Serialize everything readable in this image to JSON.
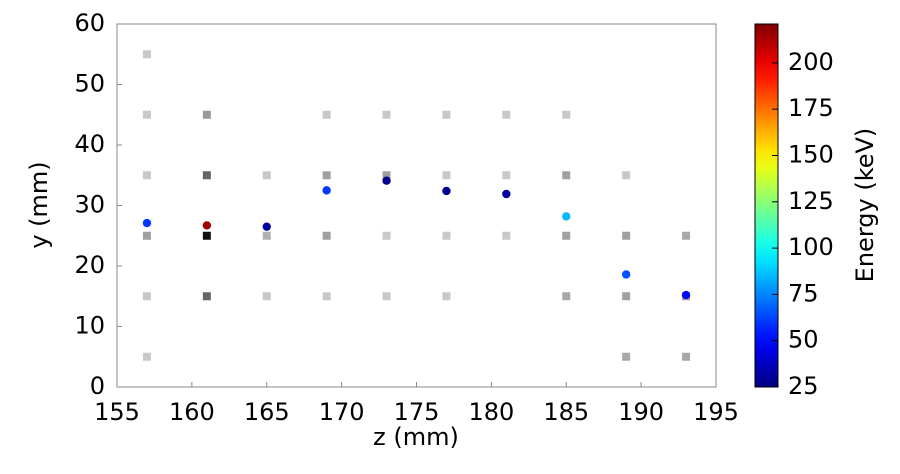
{
  "chart_data": {
    "type": "scatter",
    "xlabel": "z (mm)",
    "ylabel": "y (mm)",
    "xlim": [
      155,
      195
    ],
    "xticks": [
      155,
      160,
      165,
      170,
      175,
      180,
      185,
      190,
      195
    ],
    "ylim": [
      0,
      60
    ],
    "yticks": [
      0,
      10,
      20,
      30,
      40,
      50,
      60
    ],
    "colorbar": {
      "label": "Energy (keV)",
      "colormap": "jet",
      "lim": [
        25,
        221
      ],
      "ticks": [
        25,
        50,
        75,
        100,
        125,
        150,
        175,
        200
      ]
    },
    "series": [
      {
        "marker": "square",
        "x": [
          157,
          157,
          157,
          157,
          157,
          157,
          161,
          161,
          161,
          161,
          165,
          165,
          165,
          169,
          169,
          169,
          169,
          173,
          173,
          173,
          173,
          177,
          177,
          177,
          177,
          181,
          181,
          181,
          185,
          185,
          185,
          185,
          189,
          189,
          189,
          189,
          193,
          193,
          193
        ],
        "values": [
          55,
          45,
          35,
          25,
          15,
          5,
          45,
          35,
          25,
          15,
          35,
          25,
          15,
          45,
          35,
          25,
          15,
          45,
          35,
          25,
          15,
          45,
          35,
          25,
          15,
          45,
          35,
          25,
          45,
          35,
          25,
          15,
          35,
          25,
          15,
          5,
          25,
          15,
          5
        ],
        "colors": [
          "#c8c8c8",
          "#c8c8c8",
          "#c8c8c8",
          "#a0a0a0",
          "#c8c8c8",
          "#c8c8c8",
          "#999999",
          "#666666",
          "#111111",
          "#666666",
          "#c8c8c8",
          "#b0b0b0",
          "#c8c8c8",
          "#c8c8c8",
          "#a0a0a0",
          "#a0a0a0",
          "#c8c8c8",
          "#c8c8c8",
          "#a0a0a0",
          "#c8c8c8",
          "#c8c8c8",
          "#c8c8c8",
          "#c8c8c8",
          "#c8c8c8",
          "#c8c8c8",
          "#c8c8c8",
          "#c8c8c8",
          "#c8c8c8",
          "#c8c8c8",
          "#a0a0a0",
          "#a0a0a0",
          "#a8a8a8",
          "#c8c8c8",
          "#a0a0a0",
          "#a0a0a0",
          "#a8a8a8",
          "#a8a8a8",
          "#a0a0a0",
          "#a8a8a8"
        ]
      },
      {
        "marker": "circle",
        "x": [
          157,
          161,
          165,
          169,
          173,
          177,
          181,
          185,
          189,
          193
        ],
        "values": [
          27.1,
          26.7,
          26.5,
          32.5,
          34.1,
          32.4,
          31.9,
          28.2,
          18.6,
          15.2
        ],
        "energy": [
          60,
          215,
          30,
          60,
          28,
          28,
          30,
          85,
          65,
          50
        ]
      }
    ]
  }
}
